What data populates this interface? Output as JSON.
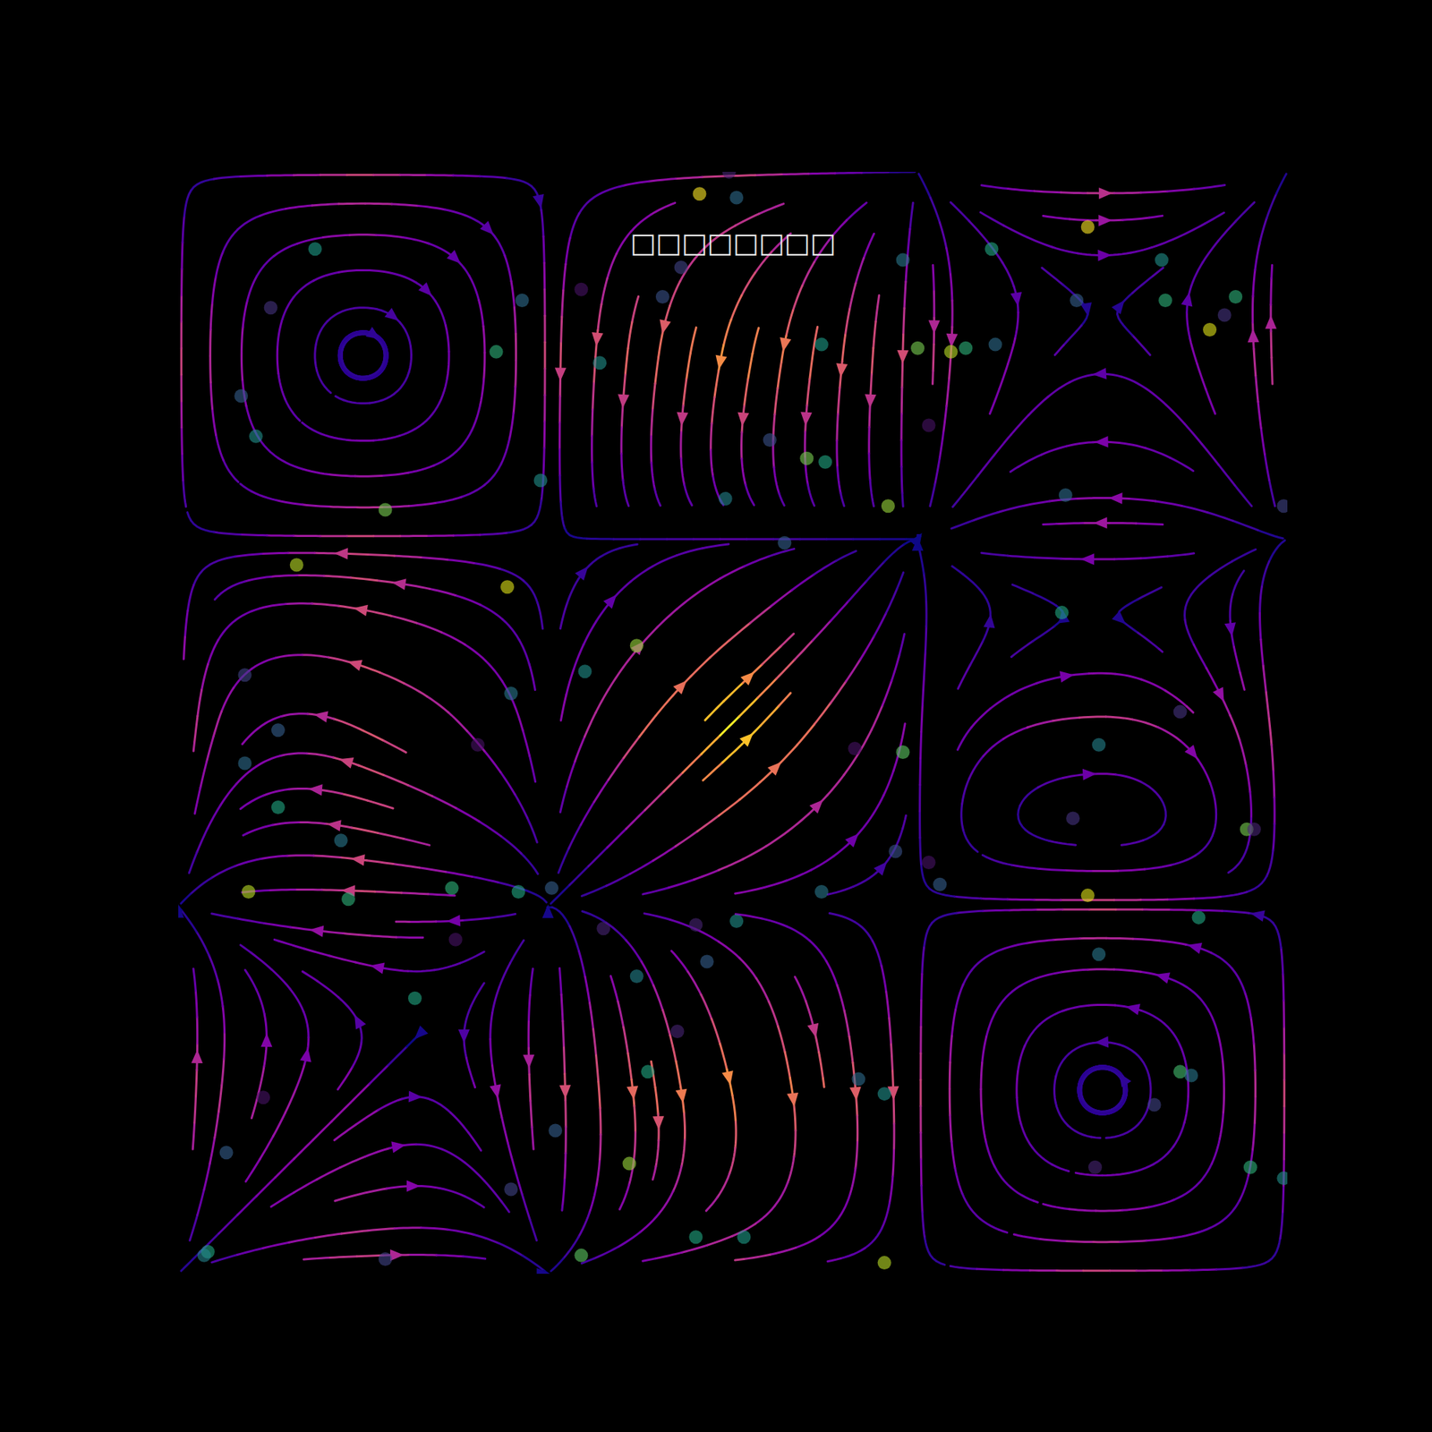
{
  "chart_data": {
    "type": "streamplot",
    "title": "□□□□□□□□",
    "xlim": [
      0,
      3
    ],
    "ylim": [
      0,
      3
    ],
    "tick_labels": false,
    "grid": false,
    "field": {
      "x": [
        0,
        0.5,
        1,
        1.5,
        2,
        2.5,
        3
      ],
      "y": [
        0,
        0.5,
        1,
        1.5,
        2,
        2.5,
        3
      ],
      "u": [
        [
          0,
          1,
          0,
          -1,
          0,
          1,
          0
        ],
        [
          0,
          0.4,
          0,
          0.3,
          0,
          0,
          0
        ],
        [
          0,
          -1,
          0,
          0.5,
          0,
          -1,
          0
        ],
        [
          0,
          -1,
          0,
          1.4,
          0,
          1,
          0
        ],
        [
          0,
          -1,
          0,
          0.3,
          0,
          -0.7,
          0
        ],
        [
          0,
          0,
          0,
          -0.3,
          0,
          -0.3,
          0
        ],
        [
          0,
          1,
          0,
          -1,
          0,
          1,
          0
        ]
      ],
      "v": [
        [
          0,
          0,
          0,
          0,
          0,
          0,
          0
        ],
        [
          1,
          0.4,
          -1,
          -1.5,
          -1,
          0,
          1
        ],
        [
          0,
          0,
          0,
          0,
          0,
          0,
          0
        ],
        [
          -1,
          0.5,
          0.5,
          1.4,
          0.5,
          0,
          -1
        ],
        [
          0,
          0,
          0,
          0,
          0,
          0,
          0
        ],
        [
          1,
          0,
          -1,
          -1.5,
          -1,
          0,
          1
        ],
        [
          0,
          0,
          0,
          0,
          0,
          0,
          0
        ]
      ]
    },
    "points": {
      "x": [
        1.49,
        1.41,
        1.51,
        0.37,
        2.46,
        2.2,
        2.66,
        2.86,
        2.83,
        2.79,
        2.67,
        2.43,
        1.36,
        1.31,
        0.93,
        0.25,
        1.09,
        1.96,
        0.86,
        1.14,
        1.74,
        2.0,
        2.09,
        2.13,
        2.21,
        0.17,
        0.21,
        1.6,
        1.7,
        1.75,
        2.03,
        0.98,
        0.56,
        1.48,
        1.92,
        2.4,
        2.99,
        1.64,
        0.32,
        0.89,
        2.39,
        1.24,
        1.1,
        0.18,
        0.9,
        2.71,
        0.27,
        0.81,
        1.83,
        1.96,
        2.49,
        0.18,
        0.27,
        2.42,
        2.89,
        2.91,
        0.44,
        1.94,
        2.03,
        2.06,
        0.19,
        0.74,
        0.92,
        1.01,
        0.46,
        1.74,
        2.46,
        2.76,
        1.51,
        1.15,
        1.4,
        0.75,
        1.43,
        1.24,
        2.49,
        0.64,
        1.35,
        1.27,
        1.84,
        1.91,
        2.71,
        2.74,
        0.23,
        2.64,
        1.02,
        0.13,
        1.22,
        2.48,
        2.9,
        0.9,
        2.99,
        0.08,
        0.07,
        0.56,
        1.09,
        1.4,
        1.53,
        1.91
      ],
      "y": [
        3.0,
        2.94,
        2.93,
        2.79,
        2.85,
        2.79,
        2.76,
        2.66,
        2.61,
        2.57,
        2.65,
        2.65,
        2.74,
        2.66,
        2.65,
        2.63,
        2.68,
        2.76,
        2.51,
        2.48,
        2.53,
        2.52,
        2.51,
        2.52,
        2.53,
        2.39,
        2.28,
        2.27,
        2.22,
        2.21,
        2.31,
        2.16,
        2.08,
        2.11,
        2.09,
        2.12,
        2.09,
        1.99,
        1.93,
        1.87,
        1.8,
        1.71,
        1.64,
        1.63,
        1.58,
        1.53,
        1.48,
        1.44,
        1.43,
        1.42,
        1.44,
        1.39,
        1.27,
        1.24,
        1.21,
        1.21,
        1.18,
        1.15,
        1.12,
        1.06,
        1.04,
        1.05,
        1.04,
        1.05,
        1.02,
        1.04,
        1.03,
        0.97,
        0.96,
        0.94,
        0.95,
        0.91,
        0.85,
        0.81,
        0.87,
        0.75,
        0.66,
        0.55,
        0.53,
        0.49,
        0.55,
        0.54,
        0.48,
        0.46,
        0.39,
        0.33,
        0.3,
        0.29,
        0.29,
        0.23,
        0.26,
        0.06,
        0.05,
        0.04,
        0.05,
        0.1,
        0.1,
        0.03
      ],
      "values": [
        0.1,
        1,
        0.35,
        0.55,
        1,
        0.6,
        0.5,
        0.65,
        0.15,
        0.95,
        0.65,
        0.3,
        0.2,
        0.25,
        0.35,
        0.15,
        0.05,
        0.4,
        0.65,
        0.5,
        0.55,
        0.8,
        0.9,
        0.65,
        0.35,
        0.3,
        0.5,
        0.25,
        0.8,
        0.6,
        0.05,
        0.5,
        0.8,
        0.45,
        0.85,
        0.35,
        0.2,
        0.3,
        0.9,
        0.95,
        0.6,
        0.85,
        0.5,
        0.2,
        0.4,
        0.15,
        0.3,
        0.05,
        0.05,
        0.75,
        0.45,
        0.35,
        0.6,
        0.15,
        0.8,
        0.1,
        0.4,
        0.25,
        0.05,
        0.3,
        0.9,
        0.65,
        0.6,
        0.3,
        0.65,
        0.4,
        0.95,
        0.6,
        0.5,
        0.1,
        0.1,
        0.05,
        0.3,
        0.45,
        0.4,
        0.6,
        0.1,
        0.6,
        0.35,
        0.5,
        0.7,
        0.4,
        0.05,
        0.2,
        0.3,
        0.3,
        0.85,
        0.1,
        0.65,
        0.2,
        0.5,
        0.6,
        0.45,
        0.2,
        0.75,
        0.6,
        0.55,
        0.9
      ]
    }
  }
}
